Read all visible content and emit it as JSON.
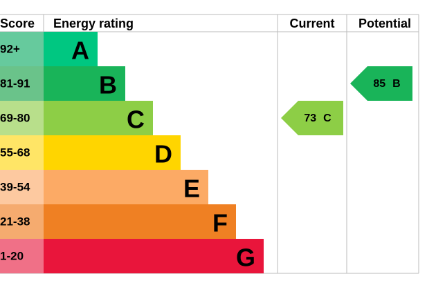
{
  "header": {
    "score": "Score",
    "rating": "Energy rating",
    "current": "Current",
    "potential": "Potential"
  },
  "bands": [
    {
      "score": "92+",
      "letter": "A"
    },
    {
      "score": "81-91",
      "letter": "B"
    },
    {
      "score": "69-80",
      "letter": "C"
    },
    {
      "score": "55-68",
      "letter": "D"
    },
    {
      "score": "39-54",
      "letter": "E"
    },
    {
      "score": "21-38",
      "letter": "F"
    },
    {
      "score": "1-20",
      "letter": "G"
    }
  ],
  "current": {
    "value": 73,
    "letter": "C"
  },
  "potential": {
    "value": 85,
    "letter": "B"
  }
}
